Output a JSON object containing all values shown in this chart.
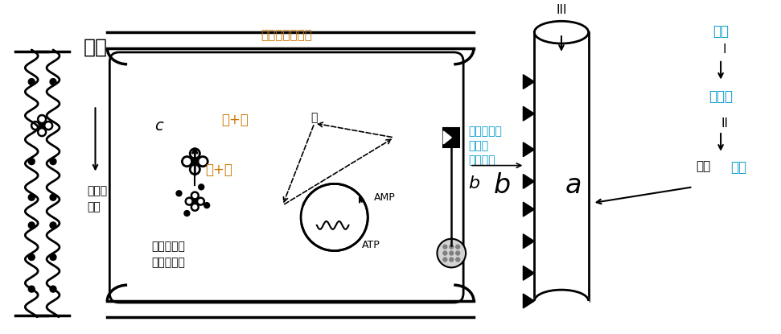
{
  "bg_color": "#ffffff",
  "text_yuanniu": "原尿",
  "text_shuitongdao": "水通道\n蛋白",
  "text_cell": "肾小管上皮细胞",
  "text_c": "c",
  "text_plus1": "（+）",
  "text_plus2": "（+）",
  "text_mei": "酶",
  "text_amp": "AMP",
  "text_atp": "ATP",
  "text_storage": "储存水通道\n蛋白的囊泡",
  "text_teyi": "特异性受体",
  "text_adh1": "抗利尿",
  "text_adh2": "激素分子",
  "text_b_cell": "b",
  "text_a": "a",
  "text_b_right": "b",
  "text_iii": "III",
  "text_cijji": "刺激",
  "text_I": "I",
  "text_xiaqiunao": "下丘脑",
  "text_II": "II",
  "text_shifang": "释放",
  "text_chuiti": "垂体",
  "color_orange": "#cc7700",
  "color_cyan": "#0099cc",
  "color_black": "#000000"
}
